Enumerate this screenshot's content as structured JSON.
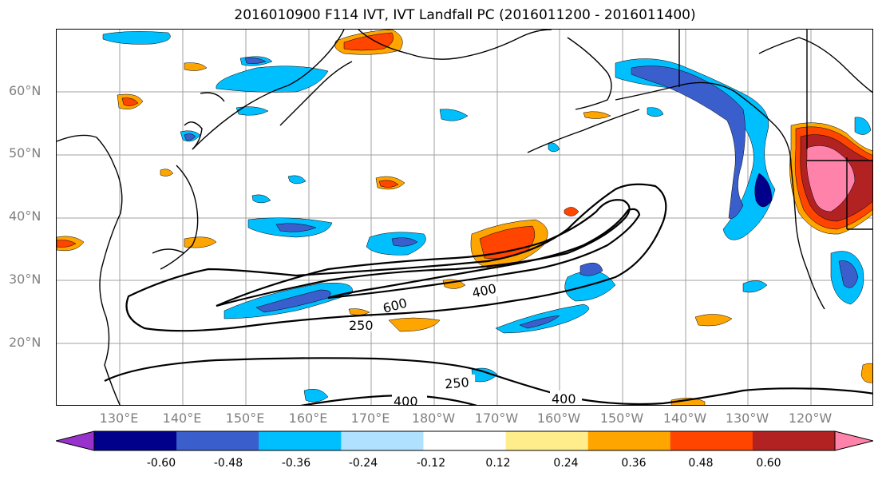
{
  "title": "2016010900 F114 IVT, IVT Landfall PC (2016011200 - 2016011400)",
  "lat_labels": [
    "60°N",
    "50°N",
    "40°N",
    "30°N",
    "20°N"
  ],
  "lon_labels": [
    "130°E",
    "140°E",
    "150°E",
    "160°E",
    "170°E",
    "180°W",
    "170°W",
    "160°W",
    "150°W",
    "140°W",
    "130°W",
    "120°W"
  ],
  "contour_labels": [
    "600",
    "400",
    "250",
    "250",
    "400",
    "400"
  ],
  "colorbar": {
    "colors": [
      "#9932CC",
      "#00008B",
      "#3A5FCD",
      "#00BFFF",
      "#B0E2FF",
      "#FFFFFF",
      "#FFEC8B",
      "#FFA500",
      "#FF4500",
      "#B22222",
      "#FF82AB"
    ],
    "tick_labels": [
      "-0.60",
      "-0.48",
      "-0.36",
      "-0.24",
      "-0.12",
      "0.12",
      "0.24",
      "0.36",
      "0.48",
      "0.60"
    ]
  },
  "colors": {
    "coastline": "#000000",
    "gridline": "#a0a0a0",
    "contour": "#000000"
  }
}
